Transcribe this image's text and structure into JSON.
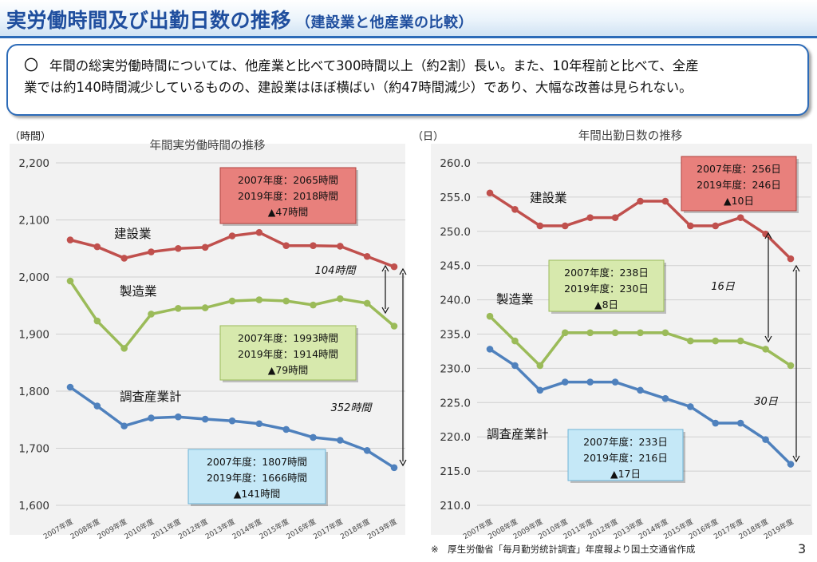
{
  "header": {
    "title": "実労働時間及び出勤日数の推移",
    "subtitle": "（建設業と他産業の比較）"
  },
  "summary": {
    "bullet": "〇",
    "line1": "年間の総実労働時間については、他産業と比べて300時間以上（約2割）長い。また、10年程前と比べて、全産",
    "line2": "業では約140時間減少しているものの、建設業はほぼ横ばい（約47時間減少）であり、大幅な改善は見られない。"
  },
  "colors": {
    "construction": "#c0504d",
    "manufacturing": "#9bbb59",
    "all": "#4f81bd"
  },
  "chart_data": [
    {
      "type": "line",
      "title": "年間実労働時間の推移",
      "unit_label": "（時間）",
      "categories": [
        "2007年度",
        "2008年度",
        "2009年度",
        "2010年度",
        "2011年度",
        "2012年度",
        "2013年度",
        "2014年度",
        "2015年度",
        "2016年度",
        "2017年度",
        "2018年度",
        "2019年度"
      ],
      "ylim": [
        1600,
        2200
      ],
      "yticks": [
        "1,600",
        "1,700",
        "1,800",
        "1,900",
        "2,000",
        "2,100",
        "2,200"
      ],
      "grid": true,
      "series": [
        {
          "name": "建設業",
          "color_key": "construction",
          "values": [
            2065,
            2053,
            2033,
            2044,
            2050,
            2052,
            2072,
            2078,
            2055,
            2055,
            2054,
            2036,
            2018
          ]
        },
        {
          "name": "製造業",
          "color_key": "manufacturing",
          "values": [
            1993,
            1923,
            1875,
            1935,
            1945,
            1946,
            1958,
            1960,
            1958,
            1951,
            1962,
            1954,
            1914
          ]
        },
        {
          "name": "調査産業計",
          "color_key": "all",
          "values": [
            1807,
            1774,
            1739,
            1753,
            1755,
            1751,
            1748,
            1743,
            1733,
            1719,
            1714,
            1696,
            1666
          ]
        }
      ],
      "callouts": [
        {
          "style": "construction",
          "lines": [
            "2007年度：2065時間",
            "2019年度：2018時間",
            "▲47時間"
          ]
        },
        {
          "style": "manufacturing",
          "lines": [
            "2007年度：1993時間",
            "2019年度：1914時間",
            "▲79時間"
          ]
        },
        {
          "style": "all",
          "lines": [
            "2007年度：1807時間",
            "2019年度：1666時間",
            "▲141時間"
          ]
        }
      ],
      "annotations": [
        "104時間",
        "352時間"
      ]
    },
    {
      "type": "line",
      "title": "年間出勤日数の推移",
      "unit_label": "（日）",
      "categories": [
        "2007年度",
        "2008年度",
        "2009年度",
        "2010年度",
        "2011年度",
        "2012年度",
        "2013年度",
        "2014年度",
        "2015年度",
        "2016年度",
        "2017年度",
        "2018年度",
        "2019年度"
      ],
      "ylim": [
        210,
        260
      ],
      "yticks": [
        "210.0",
        "215.0",
        "220.0",
        "225.0",
        "230.0",
        "235.0",
        "240.0",
        "245.0",
        "250.0",
        "255.0",
        "260.0"
      ],
      "grid": true,
      "series": [
        {
          "name": "建設業",
          "color_key": "construction",
          "values": [
            255.6,
            253.2,
            250.8,
            250.8,
            252.0,
            252.0,
            254.4,
            254.4,
            250.8,
            250.8,
            252.0,
            249.6,
            246.0
          ]
        },
        {
          "name": "製造業",
          "color_key": "manufacturing",
          "values": [
            237.6,
            234.0,
            230.4,
            235.2,
            235.2,
            235.2,
            235.2,
            235.2,
            234.0,
            234.0,
            234.0,
            232.8,
            230.4
          ]
        },
        {
          "name": "調査産業計",
          "color_key": "all",
          "values": [
            232.8,
            230.4,
            226.8,
            228.0,
            228.0,
            228.0,
            226.8,
            225.6,
            224.4,
            222.0,
            222.0,
            219.6,
            216.0
          ]
        }
      ],
      "callouts": [
        {
          "style": "construction",
          "lines": [
            "2007年度：256日",
            "2019年度：246日",
            "▲10日"
          ]
        },
        {
          "style": "manufacturing",
          "lines": [
            "2007年度：238日",
            "2019年度：230日",
            "▲8日"
          ]
        },
        {
          "style": "all",
          "lines": [
            "2007年度：233日",
            "2019年度：216日",
            "▲17日"
          ]
        }
      ],
      "annotations": [
        "16日",
        "30日"
      ]
    }
  ],
  "footer": {
    "source": "※　厚生労働省「毎月勤労統計調査」年度報より国土交通省作成",
    "page": "3"
  }
}
